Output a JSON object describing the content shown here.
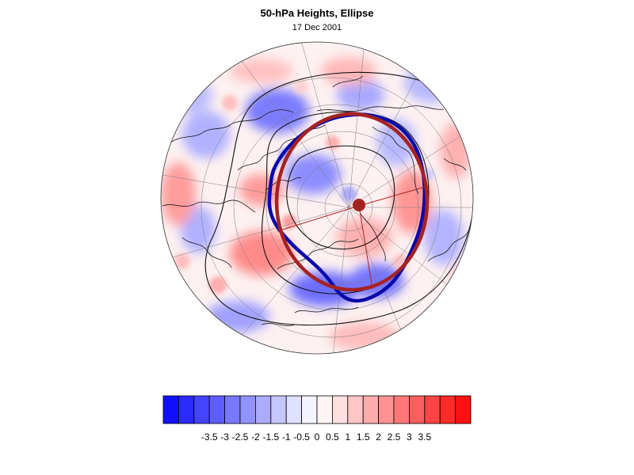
{
  "title": "50-hPa Heights, Ellipse",
  "subtitle": "17 Dec 2001",
  "colorbar": {
    "colors": [
      "#1010ff",
      "#2a2aff",
      "#4444ff",
      "#5e5eff",
      "#7878ff",
      "#9292ff",
      "#acacff",
      "#c6c6ff",
      "#e0e0ff",
      "#f4f4ff",
      "#fff4f4",
      "#ffe0e0",
      "#ffc6c6",
      "#ffacac",
      "#ff9292",
      "#ff7878",
      "#ff5e5e",
      "#ff4444",
      "#ff2a2a",
      "#ff1010"
    ],
    "tick_labels": [
      "-3.5",
      "-3",
      "-2.5",
      "-2",
      "-1.5",
      "-1",
      "-0.5",
      "0",
      "0.5",
      "1",
      "1.5",
      "2",
      "2.5",
      "3",
      "3.5"
    ]
  },
  "legend_colors": {
    "ellipse": "#a52222",
    "contour": "#0a0aaa",
    "positive": "#ff5050",
    "negative": "#5050ff"
  }
}
